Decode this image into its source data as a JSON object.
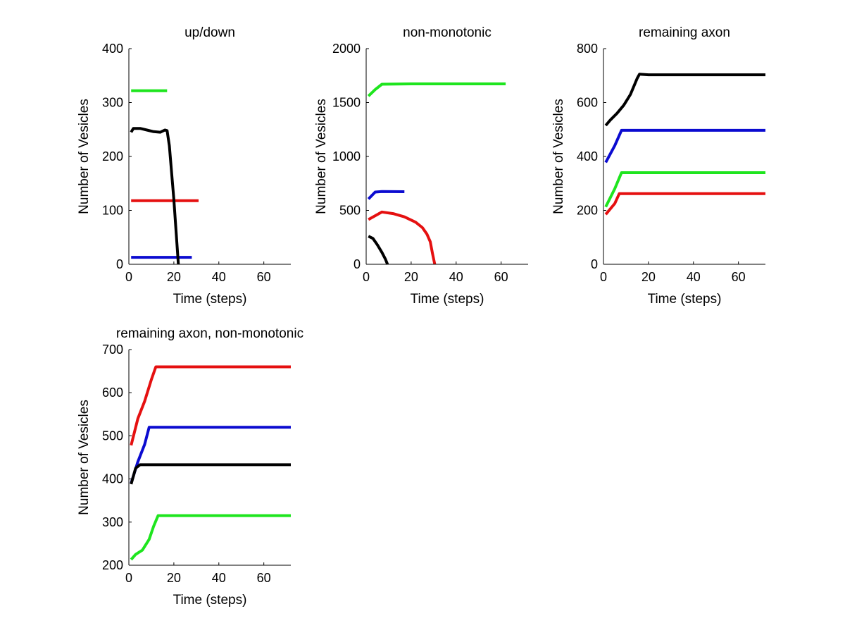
{
  "chart_data": [
    {
      "type": "line",
      "title": "up/down",
      "xlabel": "Time (steps)",
      "ylabel": "Number of Vesicles",
      "xlim": [
        0,
        72
      ],
      "ylim": [
        0,
        400
      ],
      "xticks": [
        0,
        20,
        40,
        60
      ],
      "yticks": [
        0,
        100,
        200,
        300,
        400
      ],
      "grid": false,
      "series": [
        {
          "color": "#1ee51e",
          "points": [
            [
              1,
              322
            ],
            [
              17,
              322
            ]
          ]
        },
        {
          "color": "#e51010",
          "points": [
            [
              1,
              118
            ],
            [
              31,
              118
            ]
          ]
        },
        {
          "color": "#0b0bd0",
          "points": [
            [
              1,
              13
            ],
            [
              28,
              13
            ]
          ]
        },
        {
          "color": "#000000",
          "points": [
            [
              1,
              245
            ],
            [
              2,
              252
            ],
            [
              5,
              252
            ],
            [
              8,
              249
            ],
            [
              11,
              246
            ],
            [
              14,
              245
            ],
            [
              16,
              249
            ],
            [
              17,
              248
            ],
            [
              18,
              220
            ],
            [
              19,
              170
            ],
            [
              20,
              120
            ],
            [
              21,
              60
            ],
            [
              22,
              0
            ]
          ]
        }
      ]
    },
    {
      "type": "line",
      "title": "non-monotonic",
      "xlabel": "Time (steps)",
      "ylabel": "Number of Vesicles",
      "xlim": [
        0,
        72
      ],
      "ylim": [
        0,
        2000
      ],
      "xticks": [
        0,
        20,
        40,
        60
      ],
      "yticks": [
        0,
        500,
        1000,
        1500,
        2000
      ],
      "grid": false,
      "series": [
        {
          "color": "#1ee51e",
          "points": [
            [
              1,
              1560
            ],
            [
              4,
              1620
            ],
            [
              7,
              1670
            ],
            [
              20,
              1673
            ],
            [
              62,
              1673
            ]
          ]
        },
        {
          "color": "#0b0bd0",
          "points": [
            [
              1,
              605
            ],
            [
              4,
              670
            ],
            [
              7,
              675
            ],
            [
              17,
              673
            ]
          ]
        },
        {
          "color": "#e51010",
          "points": [
            [
              1,
              415
            ],
            [
              4,
              450
            ],
            [
              7,
              485
            ],
            [
              12,
              470
            ],
            [
              17,
              440
            ],
            [
              22,
              390
            ],
            [
              25,
              340
            ],
            [
              27,
              280
            ],
            [
              28.5,
              210
            ],
            [
              29.5,
              100
            ],
            [
              30.5,
              0
            ]
          ]
        },
        {
          "color": "#000000",
          "points": [
            [
              1,
              260
            ],
            [
              3,
              240
            ],
            [
              5,
              180
            ],
            [
              7,
              110
            ],
            [
              8.5,
              50
            ],
            [
              9.5,
              0
            ]
          ]
        }
      ]
    },
    {
      "type": "line",
      "title": "remaining axon",
      "xlabel": "Time (steps)",
      "ylabel": "Number of Vesicles",
      "xlim": [
        0,
        72
      ],
      "ylim": [
        0,
        800
      ],
      "xticks": [
        0,
        20,
        40,
        60
      ],
      "yticks": [
        0,
        200,
        400,
        600,
        800
      ],
      "grid": false,
      "series": [
        {
          "color": "#000000",
          "points": [
            [
              1,
              515
            ],
            [
              3,
              535
            ],
            [
              6,
              560
            ],
            [
              9,
              590
            ],
            [
              12,
              630
            ],
            [
              15,
              690
            ],
            [
              16,
              705
            ],
            [
              20,
              703
            ],
            [
              72,
              703
            ]
          ]
        },
        {
          "color": "#0b0bd0",
          "points": [
            [
              1,
              378
            ],
            [
              5,
              440
            ],
            [
              8,
              497
            ],
            [
              72,
              497
            ]
          ]
        },
        {
          "color": "#1ee51e",
          "points": [
            [
              1,
              213
            ],
            [
              5,
              280
            ],
            [
              8,
              340
            ],
            [
              72,
              340
            ]
          ]
        },
        {
          "color": "#e51010",
          "points": [
            [
              1,
              185
            ],
            [
              5,
              225
            ],
            [
              7,
              262
            ],
            [
              72,
              262
            ]
          ]
        }
      ]
    },
    {
      "type": "line",
      "title": "remaining axon, non-monotonic",
      "xlabel": "Time (steps)",
      "ylabel": "Number of Vesicles",
      "xlim": [
        0,
        72
      ],
      "ylim": [
        200,
        700
      ],
      "xticks": [
        0,
        20,
        40,
        60
      ],
      "yticks": [
        200,
        300,
        400,
        500,
        600,
        700
      ],
      "grid": false,
      "series": [
        {
          "color": "#e51010",
          "points": [
            [
              1,
              478
            ],
            [
              4,
              540
            ],
            [
              7,
              580
            ],
            [
              10,
              630
            ],
            [
              12,
              660
            ],
            [
              72,
              660
            ]
          ]
        },
        {
          "color": "#0b0bd0",
          "points": [
            [
              1,
              390
            ],
            [
              4,
              440
            ],
            [
              7,
              480
            ],
            [
              9,
              520
            ],
            [
              72,
              520
            ]
          ]
        },
        {
          "color": "#000000",
          "points": [
            [
              1,
              388
            ],
            [
              3,
              425
            ],
            [
              5,
              433
            ],
            [
              72,
              433
            ]
          ]
        },
        {
          "color": "#1ee51e",
          "points": [
            [
              1,
              213
            ],
            [
              3,
              225
            ],
            [
              6,
              235
            ],
            [
              9,
              260
            ],
            [
              11,
              290
            ],
            [
              13,
              315
            ],
            [
              72,
              315
            ]
          ]
        }
      ]
    }
  ]
}
